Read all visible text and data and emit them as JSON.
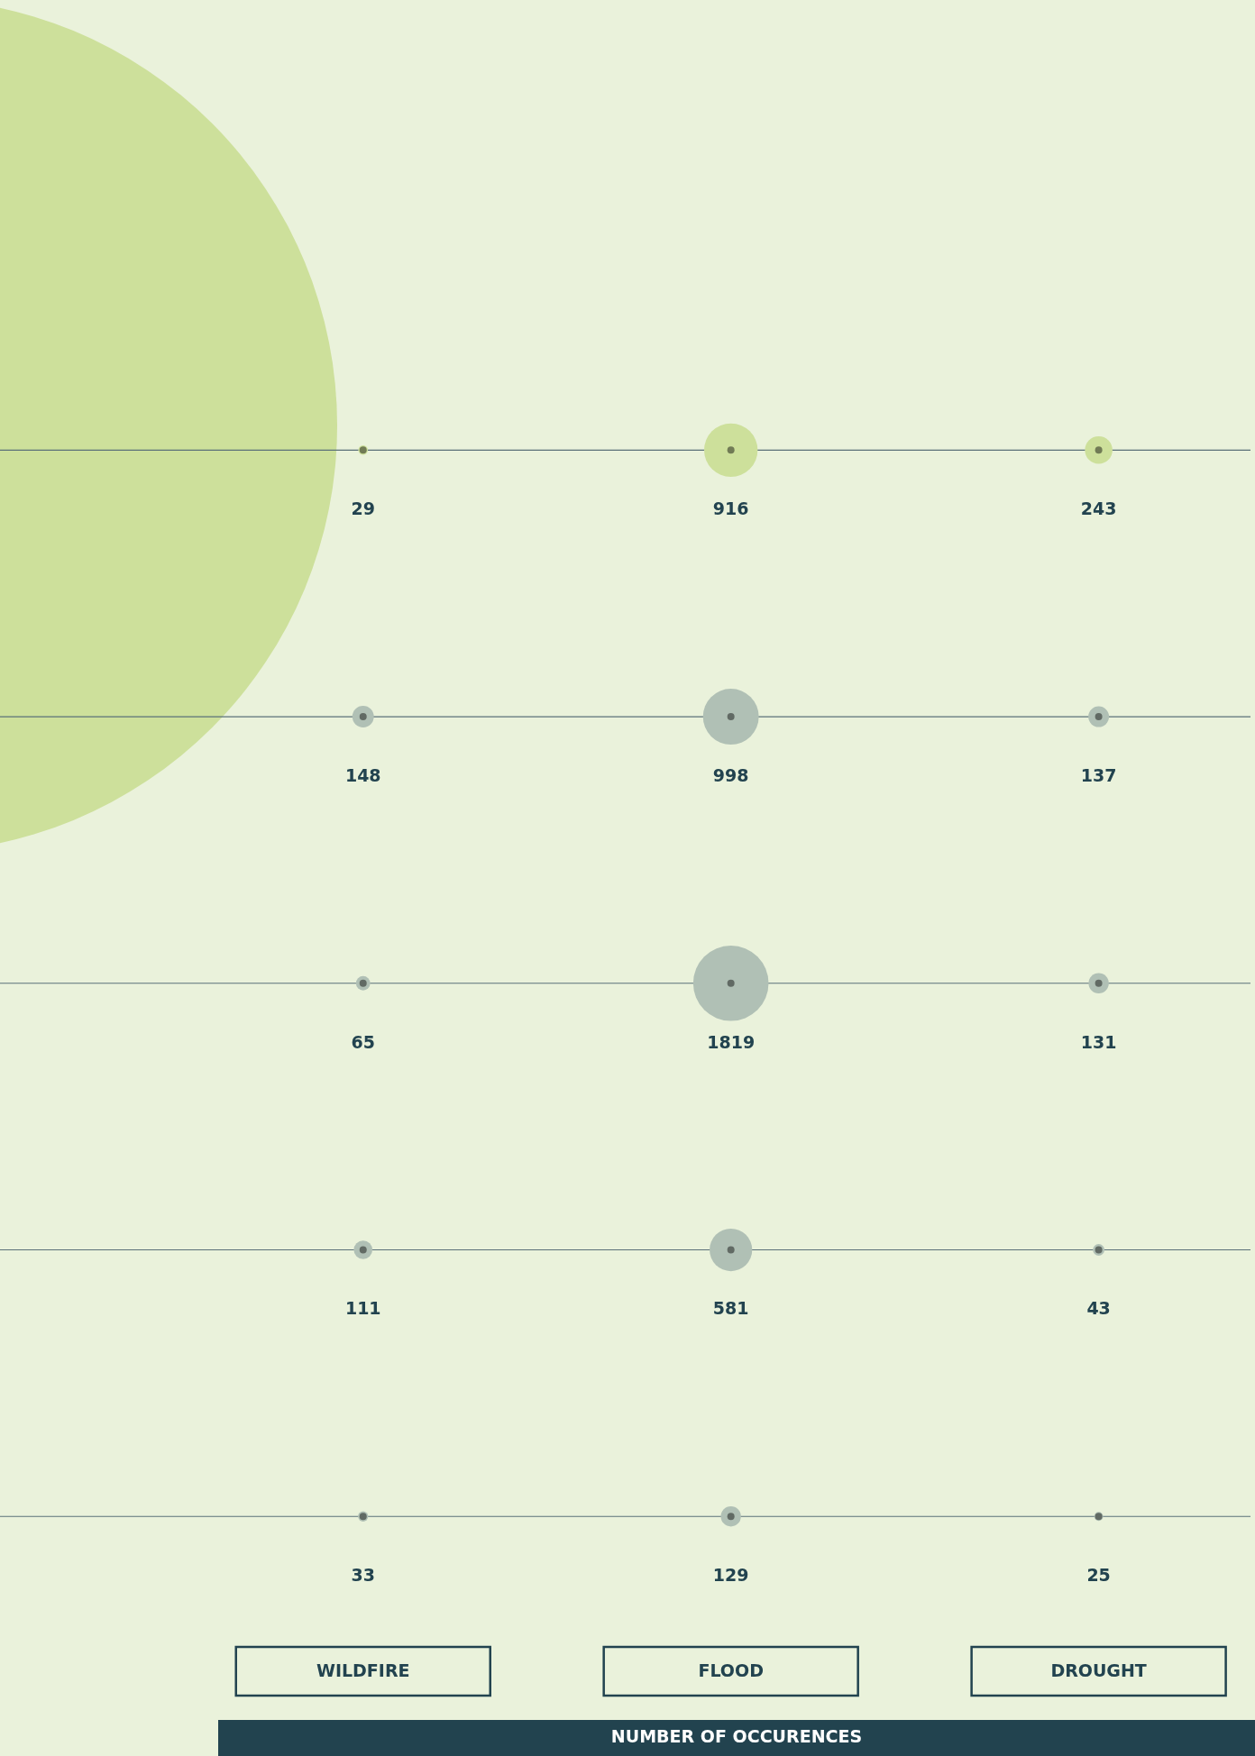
{
  "chart_data": {
    "type": "other",
    "xlabel": "NUMBER OF OCCURENCES",
    "categories": [
      "WILDFIRE",
      "FLOOD",
      "DROUGHT"
    ],
    "series": [
      {
        "color": "#cde09b",
        "values": [
          29,
          916,
          243
        ]
      },
      {
        "color": "#b0c0b5",
        "values": [
          148,
          998,
          137
        ]
      },
      {
        "color": "#b0c0b5",
        "values": [
          65,
          1819,
          131
        ]
      },
      {
        "color": "#b0c0b5",
        "values": [
          111,
          581,
          43
        ]
      },
      {
        "color": "#b0c0b5",
        "values": [
          33,
          129,
          25
        ]
      }
    ],
    "data_labels": true
  }
}
